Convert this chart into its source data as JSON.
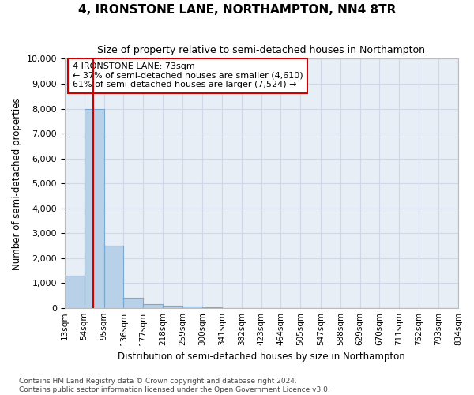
{
  "title": "4, IRONSTONE LANE, NORTHAMPTON, NN4 8TR",
  "subtitle": "Size of property relative to semi-detached houses in Northampton",
  "xlabel": "Distribution of semi-detached houses by size in Northampton",
  "ylabel": "Number of semi-detached properties",
  "annotation_line1": "4 IRONSTONE LANE: 73sqm",
  "annotation_line2": "← 37% of semi-detached houses are smaller (4,610)",
  "annotation_line3": "61% of semi-detached houses are larger (7,524) →",
  "bar_edges": [
    13,
    54,
    95,
    136,
    177,
    218,
    259,
    300,
    341,
    382,
    423,
    464,
    505,
    547,
    588,
    629,
    670,
    711,
    752,
    793,
    834
  ],
  "bar_heights": [
    1300,
    8000,
    2500,
    400,
    150,
    100,
    60,
    30,
    15,
    10,
    7,
    5,
    4,
    3,
    2,
    2,
    1,
    1,
    1,
    1
  ],
  "bar_color": "#b8d0e8",
  "bar_edge_color": "#7aaacf",
  "vline_x": 73,
  "vline_color": "#cc0000",
  "annotation_box_color": "#cc0000",
  "ylim": [
    0,
    10000
  ],
  "yticks": [
    0,
    1000,
    2000,
    3000,
    4000,
    5000,
    6000,
    7000,
    8000,
    9000,
    10000
  ],
  "grid_color": "#d0d8e8",
  "bg_color": "#e8eef6",
  "footer_line1": "Contains HM Land Registry data © Crown copyright and database right 2024.",
  "footer_line2": "Contains public sector information licensed under the Open Government Licence v3.0."
}
